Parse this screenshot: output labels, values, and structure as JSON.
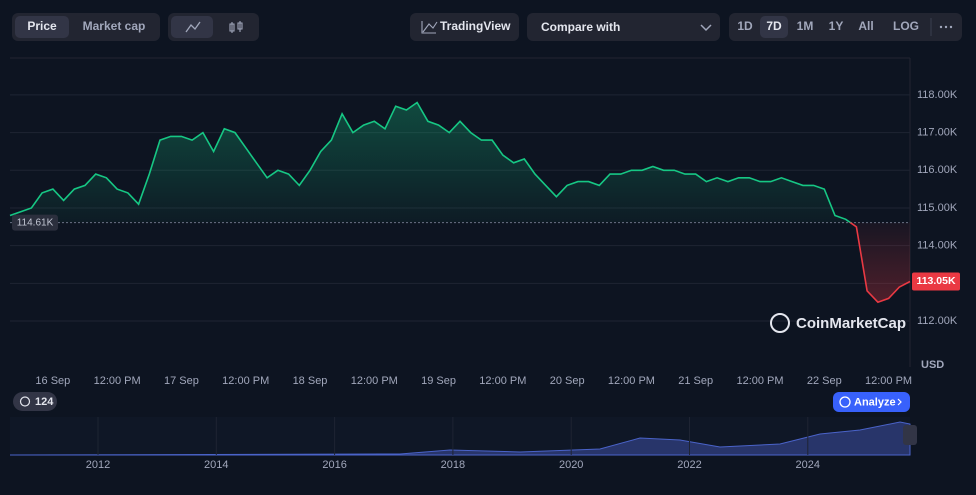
{
  "ui": {
    "price_tab": "Price",
    "market_cap_tab": "Market cap",
    "tradingview": "TradingView",
    "compare": "Compare with",
    "ranges": [
      "1D",
      "7D",
      "1M",
      "1Y",
      "All",
      "LOG"
    ],
    "active_range": "7D",
    "history_count": "124",
    "analyze": "Analyze",
    "watermark": "CoinMarketCap"
  },
  "chart_data": {
    "type": "line",
    "y_unit": "USD",
    "categories": [
      null,
      null,
      null,
      null,
      "16 Sep",
      null,
      null,
      null,
      null,
      null,
      "12:00 PM",
      null,
      null,
      null,
      null,
      null,
      "17 Sep",
      null,
      null,
      null,
      null,
      null,
      "12:00 PM",
      null,
      null,
      null,
      null,
      null,
      "18 Sep",
      null,
      null,
      null,
      null,
      null,
      "12:00 PM",
      null,
      null,
      null,
      null,
      null,
      "19 Sep",
      null,
      null,
      null,
      null,
      null,
      "12:00 PM",
      null,
      null,
      null,
      null,
      null,
      "20 Sep",
      null,
      null,
      null,
      null,
      null,
      "12:00 PM",
      null,
      null,
      null,
      null,
      null,
      "21 Sep",
      null,
      null,
      null,
      null,
      null,
      "12:00 PM",
      null,
      null,
      null,
      null,
      null,
      "22 Sep",
      null,
      null,
      null,
      null,
      null,
      "12:00 PM",
      null,
      null
    ],
    "values": [
      114.8,
      114.9,
      115.0,
      115.4,
      115.5,
      115.2,
      115.5,
      115.6,
      115.9,
      115.8,
      115.5,
      115.4,
      115.1,
      115.9,
      116.8,
      116.9,
      116.9,
      116.8,
      117.0,
      116.5,
      117.1,
      117.0,
      116.6,
      116.2,
      115.8,
      116.0,
      115.9,
      115.6,
      116.0,
      116.5,
      116.8,
      117.5,
      117.0,
      117.2,
      117.3,
      117.1,
      117.7,
      117.6,
      117.8,
      117.3,
      117.2,
      117.0,
      117.3,
      117.0,
      116.8,
      116.8,
      116.4,
      116.2,
      116.3,
      115.9,
      115.6,
      115.3,
      115.6,
      115.7,
      115.7,
      115.6,
      115.9,
      115.9,
      116.0,
      116.0,
      116.1,
      116.0,
      116.0,
      115.9,
      115.9,
      115.7,
      115.8,
      115.7,
      115.8,
      115.8,
      115.7,
      115.7,
      115.8,
      115.7,
      115.6,
      115.6,
      115.5,
      114.8,
      114.7,
      114.5,
      112.8,
      112.5,
      112.6,
      112.9,
      113.05
    ],
    "ylim": [
      110.78,
      118.98
    ],
    "yticks": [
      {
        "value": 112,
        "label": "112.00K"
      },
      {
        "value": 113,
        "label": "113.00K"
      },
      {
        "value": 114,
        "label": "114.00K"
      },
      {
        "value": 115,
        "label": "115.00K"
      },
      {
        "value": 116,
        "label": "116.00K"
      },
      {
        "value": 117,
        "label": "117.00K"
      },
      {
        "value": 118,
        "label": "118.00K"
      }
    ],
    "grid": true,
    "reference": {
      "value": 114.61,
      "label": "114.61K"
    },
    "last_price": {
      "value": 113.05,
      "label": "113.05K"
    },
    "above_color": "#16c784",
    "below_color": "#ea3943",
    "navigator_years": [
      "2012",
      "2014",
      "2016",
      "2018",
      "2020",
      "2022",
      "2024"
    ]
  }
}
